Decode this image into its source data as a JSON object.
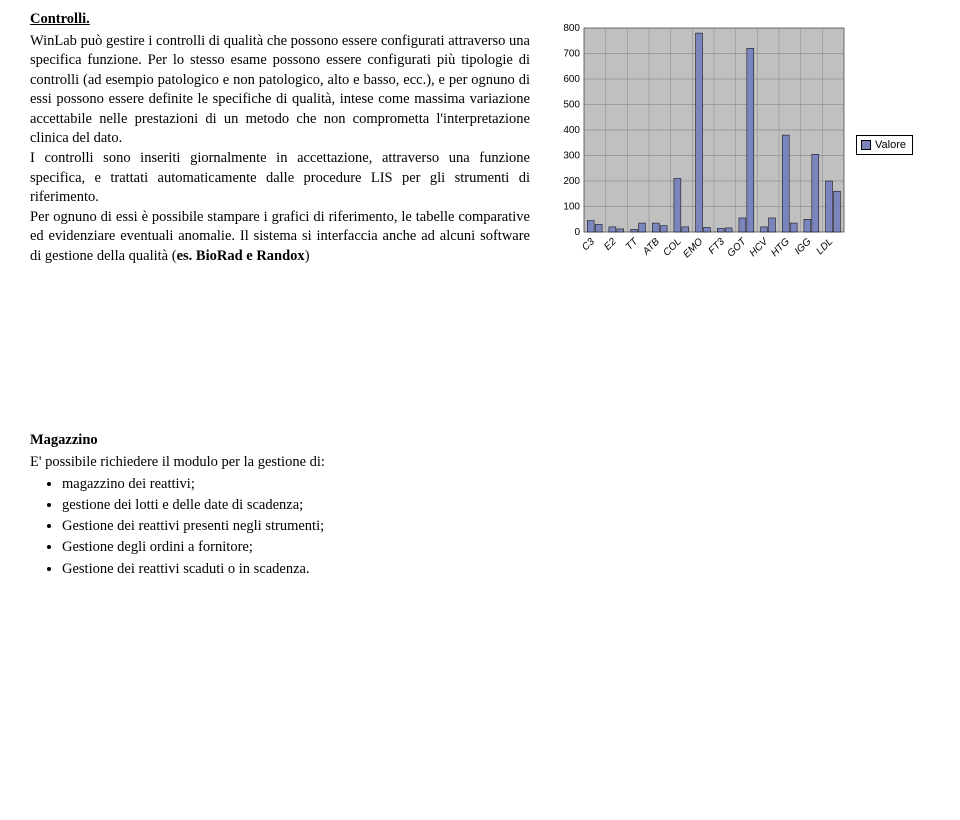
{
  "controlli": {
    "title": "Controlli.",
    "p1": "WinLab può gestire i controlli di qualità che possono essere configurati  attraverso una specifica funzione. Per lo stesso esame possono essere configurati più tipologie di controlli (ad esempio patologico e non patologico, alto e basso, ecc.), e  per ognuno di essi possono essere definite le specifiche di qualità, intese come massima variazione accettabile nelle prestazioni di un metodo che non comprometta l'interpretazione clinica del dato.",
    "p2": "I controlli sono inseriti giornalmente in accettazione, attraverso una funzione specifica, e trattati automaticamente dalle procedure LIS per gli strumenti di riferimento.",
    "p3a": "Per ognuno di essi è possibile stampare i grafici di riferimento, le tabelle comparative ed evidenziare eventuali anomalie. Il sistema si interfaccia anche ad alcuni software di gestione della qualità (",
    "p3b": "es. BioRad e Randox",
    "p3c": ")"
  },
  "chart": {
    "type": "bar",
    "categories": [
      "C3",
      "E2",
      "TT",
      "ATB",
      "COL",
      "EMO",
      "FT3",
      "GOT",
      "HCV",
      "HTG",
      "IGG",
      "LDL"
    ],
    "values_pair": [
      [
        45,
        30
      ],
      [
        20,
        12
      ],
      [
        10,
        35
      ],
      [
        35,
        25
      ],
      [
        210,
        20
      ],
      [
        780,
        18
      ],
      [
        14,
        16
      ],
      [
        55,
        720
      ],
      [
        20,
        55
      ],
      [
        380,
        35
      ],
      [
        50,
        305
      ],
      [
        200,
        160
      ]
    ],
    "ylim": [
      0,
      800
    ],
    "ytick_step": 100,
    "bar_color": "#7a85be",
    "bar_border": "#000000",
    "plot_bg": "#c0c0c0",
    "grid_color": "#7a7a7a",
    "outer_bg": "#ffffff",
    "axis_font": "Arial",
    "axis_fontsize": 10,
    "legend_label": "Valore",
    "legend_swatch": "#7a85be"
  },
  "magazzino": {
    "title": "Magazzino",
    "intro": "E' possibile richiedere il modulo per la  gestione di:",
    "items": [
      "magazzino dei reattivi;",
      "gestione dei lotti e  delle date di scadenza;",
      "Gestione dei reattivi presenti negli strumenti;",
      "Gestione degli ordini a fornitore;",
      "Gestione dei reattivi scaduti o in scadenza."
    ]
  }
}
